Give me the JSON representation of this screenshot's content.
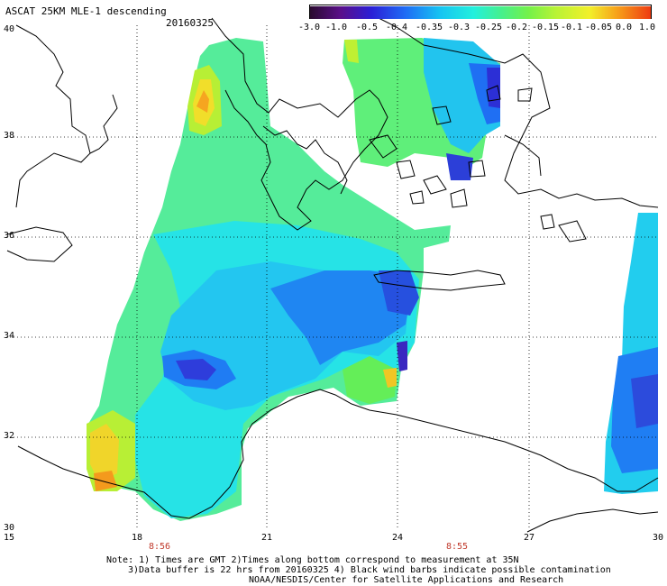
{
  "header": {
    "title": "ASCAT 25KM MLE-1 descending",
    "date": "20160325"
  },
  "colorbar": {
    "ticks": [
      "-3.0",
      "-1.0",
      "-0.5",
      "-0.4",
      "-0.35",
      "-0.3",
      "-0.25",
      "-0.2",
      "-0.15",
      "-0.1",
      "-0.05",
      "0.0",
      "1.0"
    ],
    "colors": [
      "#2a0a2e",
      "#5a0f8a",
      "#2b1fd6",
      "#1f6cf5",
      "#16c3f2",
      "#22f0dd",
      "#45f08e",
      "#73f14a",
      "#b8f335",
      "#f2f02a",
      "#f7a21a",
      "#ee3b12"
    ]
  },
  "map": {
    "lat_labels": [
      "40",
      "38",
      "36",
      "34",
      "32",
      "30"
    ],
    "lon_labels": [
      "15",
      "18",
      "21",
      "24",
      "27",
      "30"
    ],
    "time_labels": [
      "8:56",
      "8:55"
    ],
    "ocean_color": "#ffffff",
    "land_line_color": "#000000",
    "grid_style": "dotted"
  },
  "footer": {
    "line1": "Note: 1) Times are GMT 2)Times along bottom correspond to measurement at 35N",
    "line2": "3)Data buffer is 22 hrs from 20160325 4) Black wind barbs indicate possible contamination",
    "line3": "NOAA/NESDIS/Center for Satellite Applications and Research"
  }
}
